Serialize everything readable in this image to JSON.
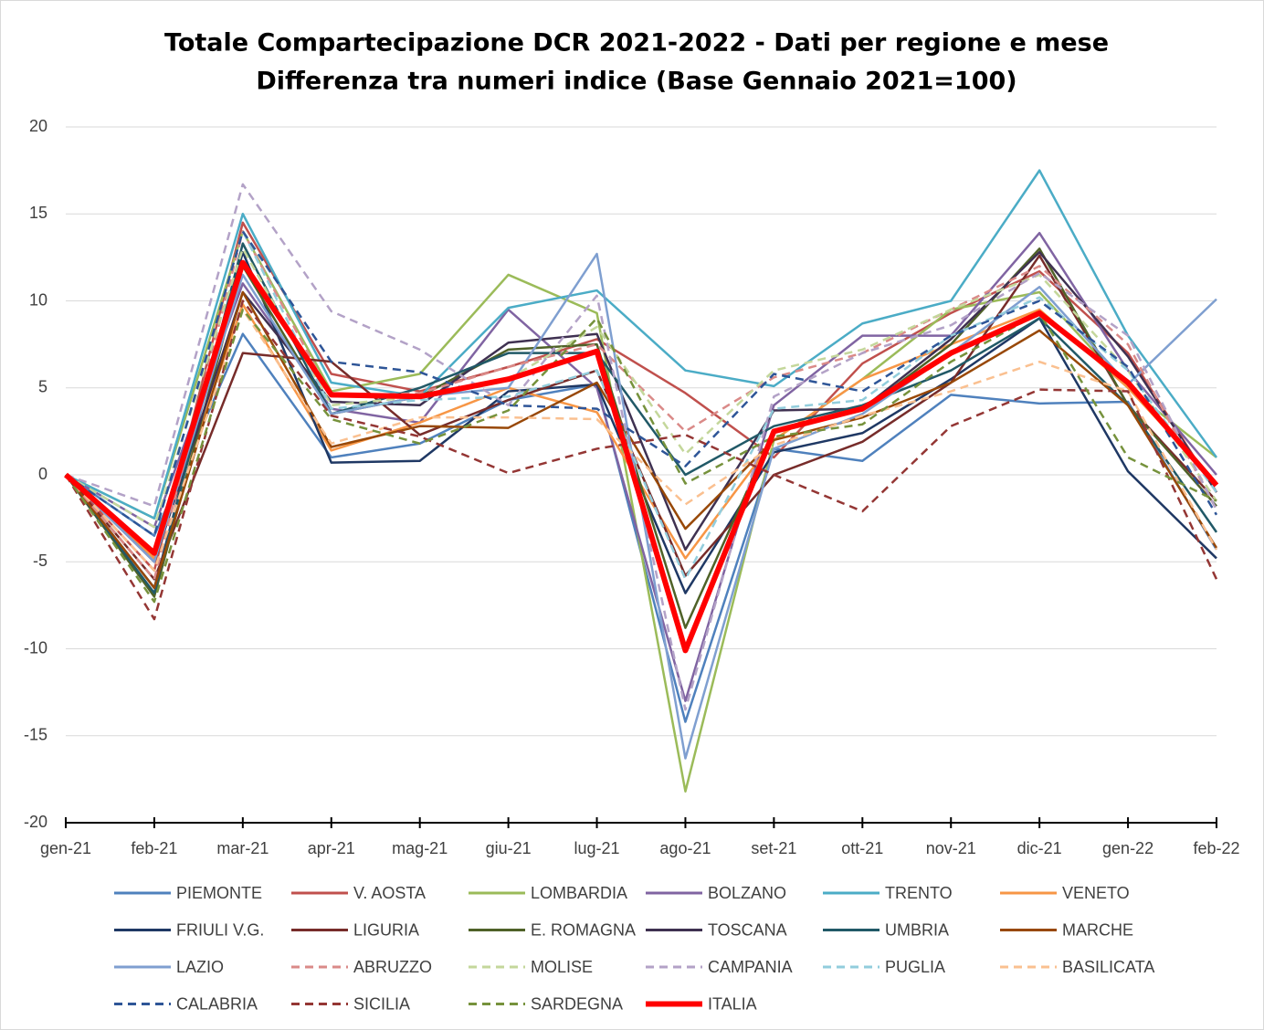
{
  "chart_data": {
    "type": "line",
    "title": "Totale Compartecipazione DCR 2021-2022 - Dati per regione e mese",
    "subtitle": "Differenza tra numeri indice (Base Gennaio 2021=100)",
    "categories": [
      "gen-21",
      "feb-21",
      "mar-21",
      "apr-21",
      "mag-21",
      "giu-21",
      "lug-21",
      "ago-21",
      "set-21",
      "ott-21",
      "nov-21",
      "dic-21",
      "gen-22",
      "feb-22"
    ],
    "ylim": [
      -20,
      20
    ],
    "yticks": [
      -20,
      -15,
      -10,
      -5,
      0,
      5,
      10,
      15,
      20
    ],
    "grid": true,
    "series": [
      {
        "name": "PIEMONTE",
        "color": "#4f81bd",
        "values": [
          0,
          -3.5,
          8.1,
          1.0,
          1.8,
          4.3,
          5.2,
          -14.2,
          1.5,
          0.8,
          4.6,
          4.1,
          4.2,
          -4.3
        ]
      },
      {
        "name": "V. AOSTA",
        "color": "#c0504d",
        "values": [
          0,
          -5.5,
          14.5,
          5.8,
          4.8,
          6.2,
          7.8,
          4.7,
          1.0,
          6.4,
          9.3,
          11.7,
          7.0,
          -1.0
        ]
      },
      {
        "name": "LOMBARDIA",
        "color": "#9bbb59",
        "values": [
          0,
          -2.5,
          14.0,
          4.8,
          5.8,
          11.5,
          9.3,
          -18.2,
          2.0,
          5.5,
          9.5,
          10.5,
          5.0,
          1.0
        ]
      },
      {
        "name": "BOLZANO",
        "color": "#8064a2",
        "values": [
          0,
          -3.0,
          11.0,
          3.8,
          3.0,
          9.5,
          5.0,
          -13.0,
          4.0,
          8.0,
          8.0,
          13.9,
          6.0,
          0.0
        ]
      },
      {
        "name": "TRENTO",
        "color": "#4bacc6",
        "values": [
          0,
          -2.5,
          15.0,
          5.3,
          4.5,
          9.6,
          10.6,
          6.0,
          5.1,
          8.7,
          10.0,
          17.5,
          8.0,
          1.0
        ]
      },
      {
        "name": "VENETO",
        "color": "#f79646",
        "values": [
          0,
          -4.8,
          9.8,
          1.4,
          3.0,
          5.0,
          3.6,
          -4.8,
          2.0,
          5.5,
          7.5,
          9.5,
          5.0,
          -0.5
        ]
      },
      {
        "name": "FRIULI V.G.",
        "color": "#1f3864",
        "values": [
          0,
          -6.5,
          12.8,
          0.7,
          0.8,
          4.8,
          5.2,
          -6.8,
          1.3,
          2.4,
          5.5,
          9.0,
          0.2,
          -4.8
        ]
      },
      {
        "name": "LIGURIA",
        "color": "#772c2a",
        "values": [
          0,
          -6.0,
          7.0,
          6.5,
          2.3,
          4.3,
          6.0,
          -5.8,
          0.0,
          1.9,
          5.3,
          12.6,
          4.0,
          -1.5
        ]
      },
      {
        "name": "E. ROMAGNA",
        "color": "#4f6228",
        "values": [
          0,
          -7.0,
          12.0,
          3.5,
          4.5,
          7.2,
          7.5,
          -8.8,
          2.5,
          3.7,
          7.5,
          13.0,
          4.0,
          -1.8
        ]
      },
      {
        "name": "TOSCANA",
        "color": "#3f3151",
        "values": [
          0,
          -5.0,
          10.5,
          4.2,
          4.0,
          7.6,
          8.1,
          -4.3,
          3.7,
          3.8,
          7.8,
          12.8,
          6.8,
          -1.0
        ]
      },
      {
        "name": "UMBRIA",
        "color": "#215967",
        "values": [
          0,
          -6.8,
          13.3,
          3.5,
          5.0,
          7.0,
          7.0,
          0.0,
          2.8,
          4.0,
          6.0,
          9.0,
          4.0,
          -3.3
        ]
      },
      {
        "name": "MARCHE",
        "color": "#984807",
        "values": [
          0,
          -6.5,
          10.5,
          1.6,
          2.8,
          2.7,
          5.3,
          -3.1,
          2.0,
          3.3,
          5.3,
          8.3,
          4.0,
          -4.2
        ]
      },
      {
        "name": "LAZIO",
        "color": "#7f9fd0",
        "values": [
          0,
          -5.0,
          11.5,
          3.5,
          4.5,
          5.0,
          12.7,
          -16.3,
          1.5,
          3.5,
          7.0,
          10.8,
          5.2,
          10.1
        ]
      },
      {
        "name": "ABRUZZO",
        "color": "#da8a88",
        "dashed": true,
        "values": [
          0,
          -6.0,
          14.0,
          4.5,
          4.7,
          6.2,
          7.5,
          2.5,
          5.6,
          7.0,
          9.5,
          12.0,
          7.5,
          -2.0
        ]
      },
      {
        "name": "MOLISE",
        "color": "#c4d79b",
        "dashed": true,
        "values": [
          0,
          -3.0,
          13.0,
          4.0,
          4.5,
          5.5,
          8.5,
          1.2,
          6.0,
          7.2,
          9.5,
          11.5,
          6.0,
          -1.5
        ]
      },
      {
        "name": "CAMPANIA",
        "color": "#b3a2c7",
        "dashed": true,
        "values": [
          0,
          -1.8,
          16.7,
          9.4,
          7.2,
          4.0,
          10.3,
          -13.5,
          4.5,
          7.0,
          8.6,
          11.6,
          8.0,
          -2.0
        ]
      },
      {
        "name": "PUGLIA",
        "color": "#92cddc",
        "dashed": true,
        "values": [
          0,
          -3.5,
          14.0,
          3.8,
          4.3,
          4.5,
          6.0,
          -6.0,
          3.8,
          4.3,
          8.0,
          10.2,
          6.0,
          -1.0
        ]
      },
      {
        "name": "BASILICATA",
        "color": "#fac090",
        "dashed": true,
        "values": [
          0,
          -5.5,
          9.5,
          1.8,
          3.3,
          3.3,
          3.2,
          -1.7,
          1.7,
          3.4,
          4.8,
          6.5,
          4.8,
          -4.3
        ]
      },
      {
        "name": "CALABRIA",
        "color": "#2e5597",
        "dashed": true,
        "values": [
          0,
          -3.5,
          14.0,
          6.5,
          5.9,
          4.0,
          3.8,
          0.5,
          5.8,
          4.8,
          8.0,
          10.0,
          6.2,
          -2.3
        ]
      },
      {
        "name": "SICILIA",
        "color": "#943634",
        "dashed": true,
        "values": [
          0,
          -8.3,
          10.0,
          3.4,
          2.2,
          0.1,
          1.5,
          2.3,
          0.0,
          -2.1,
          2.8,
          4.9,
          4.8,
          -6.0
        ]
      },
      {
        "name": "SARDEGNA",
        "color": "#76923c",
        "dashed": true,
        "values": [
          0,
          -7.3,
          9.5,
          3.2,
          1.8,
          3.7,
          9.0,
          -0.5,
          2.2,
          2.9,
          6.5,
          9.3,
          1.0,
          -1.5
        ]
      },
      {
        "name": "ITALIA",
        "color": "#ff0000",
        "width": 6,
        "values": [
          0,
          -4.5,
          12.2,
          4.6,
          4.5,
          5.5,
          7.1,
          -10.1,
          2.5,
          3.8,
          7.0,
          9.3,
          5.3,
          -0.6
        ]
      }
    ]
  }
}
